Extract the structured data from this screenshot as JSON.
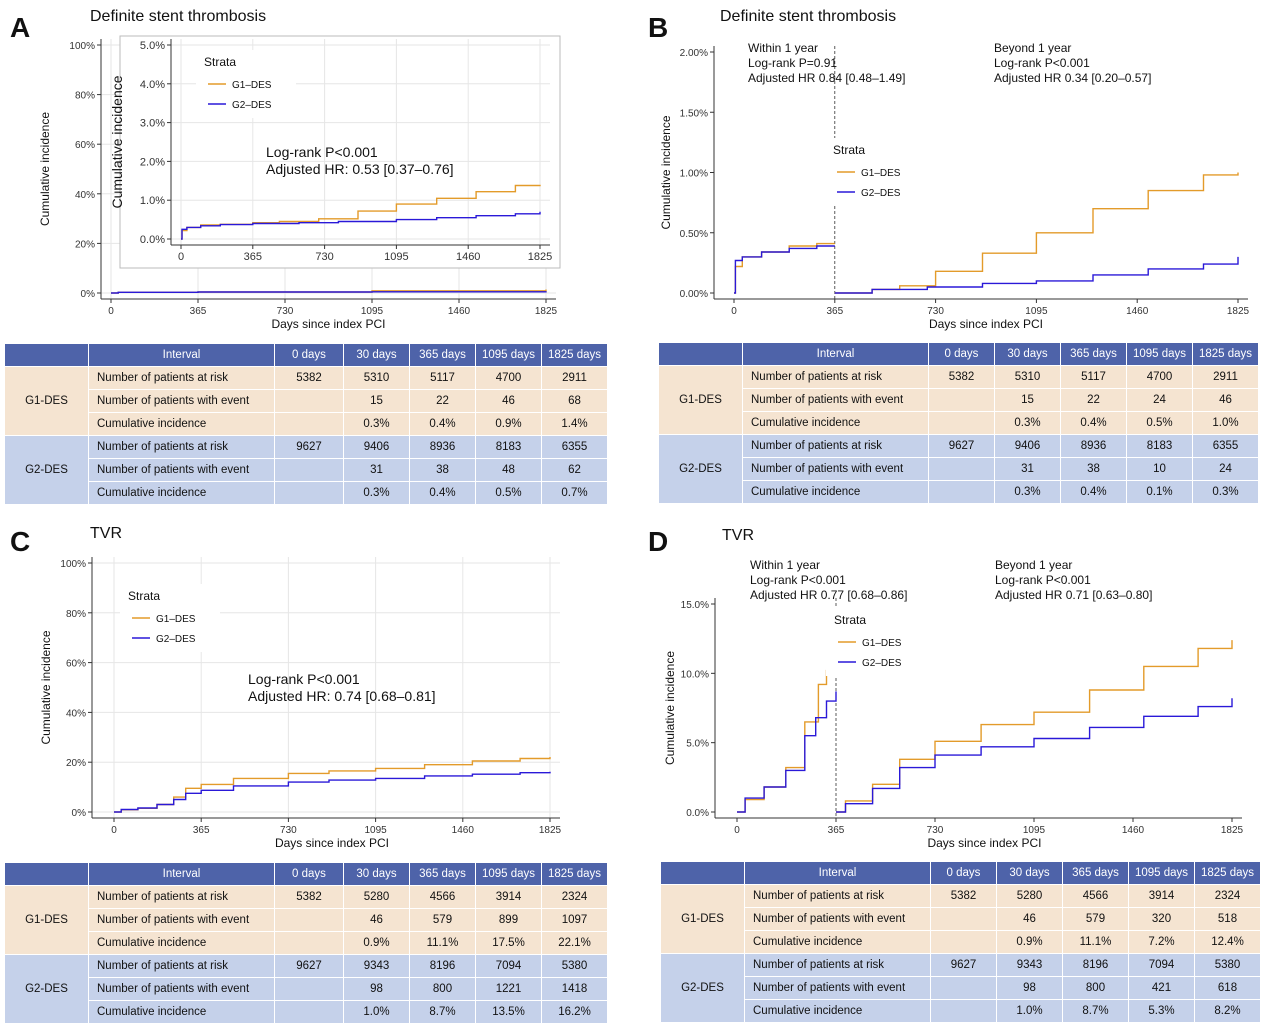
{
  "colors": {
    "g1": "#e39b2a",
    "g2": "#2a19d8",
    "header": "#4e63a9",
    "g1_bg": "#f5e4d1",
    "g2_bg": "#c5d1ea"
  },
  "panels": [
    {
      "label": "A",
      "title": "Definite stent thrombosis",
      "annotation": [
        "Log-rank P<0.001",
        "Adjusted HR: 0.53 [0.37–0.76]"
      ],
      "inset_annotation": true,
      "legend": {
        "title": "Strata",
        "items": [
          "G1–DES",
          "G2–DES"
        ]
      },
      "table": {
        "header": [
          "Interval",
          "0 days",
          "30 days",
          "365 days",
          "1095 days",
          "1825 days"
        ],
        "groups": [
          {
            "name": "G1-DES",
            "rows": [
              {
                "label": "Number of patients at risk",
                "cells": [
                  "5382",
                  "5310",
                  "5117",
                  "4700",
                  "2911"
                ]
              },
              {
                "label": "Number of patients with event",
                "cells": [
                  "",
                  "15",
                  "22",
                  "46",
                  "68"
                ]
              },
              {
                "label": "Cumulative incidence",
                "cells": [
                  "",
                  "0.3%",
                  "0.4%",
                  "0.9%",
                  "1.4%"
                ]
              }
            ]
          },
          {
            "name": "G2-DES",
            "rows": [
              {
                "label": "Number of patients at risk",
                "cells": [
                  "9627",
                  "9406",
                  "8936",
                  "8183",
                  "6355"
                ]
              },
              {
                "label": "Number of patients with event",
                "cells": [
                  "",
                  "31",
                  "38",
                  "48",
                  "62"
                ]
              },
              {
                "label": "Cumulative incidence",
                "cells": [
                  "",
                  "0.3%",
                  "0.4%",
                  "0.5%",
                  "0.7%"
                ]
              }
            ]
          }
        ]
      }
    },
    {
      "label": "B",
      "title": "Definite stent thrombosis",
      "landmark_text": {
        "within": [
          "Within 1 year",
          "Log-rank P=0.91",
          "Adjusted HR 0.84 [0.48–1.49]"
        ],
        "beyond": [
          "Beyond 1 year",
          "Log-rank P<0.001",
          "Adjusted HR 0.34 [0.20–0.57]"
        ]
      },
      "legend": {
        "title": "Strata",
        "items": [
          "G1–DES",
          "G2–DES"
        ]
      },
      "table": {
        "header": [
          "Interval",
          "0 days",
          "30 days",
          "365 days",
          "1095 days",
          "1825 days"
        ],
        "groups": [
          {
            "name": "G1-DES",
            "rows": [
              {
                "label": "Number of patients at risk",
                "cells": [
                  "5382",
                  "5310",
                  "5117",
                  "4700",
                  "2911"
                ]
              },
              {
                "label": "Number of patients with event",
                "cells": [
                  "",
                  "15",
                  "22",
                  "24",
                  "46"
                ]
              },
              {
                "label": "Cumulative incidence",
                "cells": [
                  "",
                  "0.3%",
                  "0.4%",
                  "0.5%",
                  "1.0%"
                ]
              }
            ]
          },
          {
            "name": "G2-DES",
            "rows": [
              {
                "label": "Number of patients at risk",
                "cells": [
                  "9627",
                  "9406",
                  "8936",
                  "8183",
                  "6355"
                ]
              },
              {
                "label": "Number of patients with event",
                "cells": [
                  "",
                  "31",
                  "38",
                  "10",
                  "24"
                ]
              },
              {
                "label": "Cumulative incidence",
                "cells": [
                  "",
                  "0.3%",
                  "0.4%",
                  "0.1%",
                  "0.3%"
                ]
              }
            ]
          }
        ]
      }
    },
    {
      "label": "C",
      "title": "TVR",
      "annotation": [
        "Log-rank P<0.001",
        "Adjusted HR: 0.74 [0.68–0.81]"
      ],
      "legend": {
        "title": "Strata",
        "items": [
          "G1–DES",
          "G2–DES"
        ]
      },
      "table": {
        "header": [
          "Interval",
          "0 days",
          "30 days",
          "365 days",
          "1095 days",
          "1825 days"
        ],
        "groups": [
          {
            "name": "G1-DES",
            "rows": [
              {
                "label": "Number of patients at risk",
                "cells": [
                  "5382",
                  "5280",
                  "4566",
                  "3914",
                  "2324"
                ]
              },
              {
                "label": "Number of patients with event",
                "cells": [
                  "",
                  "46",
                  "579",
                  "899",
                  "1097"
                ]
              },
              {
                "label": "Cumulative incidence",
                "cells": [
                  "",
                  "0.9%",
                  "11.1%",
                  "17.5%",
                  "22.1%"
                ]
              }
            ]
          },
          {
            "name": "G2-DES",
            "rows": [
              {
                "label": "Number of patients at risk",
                "cells": [
                  "9627",
                  "9343",
                  "8196",
                  "7094",
                  "5380"
                ]
              },
              {
                "label": "Number of patients with event",
                "cells": [
                  "",
                  "98",
                  "800",
                  "1221",
                  "1418"
                ]
              },
              {
                "label": "Cumulative incidence",
                "cells": [
                  "",
                  "1.0%",
                  "8.7%",
                  "13.5%",
                  "16.2%"
                ]
              }
            ]
          }
        ]
      }
    },
    {
      "label": "D",
      "title": "TVR",
      "landmark_text": {
        "within": [
          "Within 1 year",
          "Log-rank P<0.001",
          "Adjusted HR 0.77 [0.68–0.86]"
        ],
        "beyond": [
          "Beyond 1 year",
          "Log-rank P<0.001",
          "Adjusted HR 0.71 [0.63–0.80]"
        ]
      },
      "legend": {
        "title": "Strata",
        "items": [
          "G1–DES",
          "G2–DES"
        ]
      },
      "table": {
        "header": [
          "Interval",
          "0 days",
          "30 days",
          "365 days",
          "1095 days",
          "1825 days"
        ],
        "groups": [
          {
            "name": "G1-DES",
            "rows": [
              {
                "label": "Number of patients at risk",
                "cells": [
                  "5382",
                  "5280",
                  "4566",
                  "3914",
                  "2324"
                ]
              },
              {
                "label": "Number of patients with event",
                "cells": [
                  "",
                  "46",
                  "579",
                  "320",
                  "518"
                ]
              },
              {
                "label": "Cumulative incidence",
                "cells": [
                  "",
                  "0.9%",
                  "11.1%",
                  "7.2%",
                  "12.4%"
                ]
              }
            ]
          },
          {
            "name": "G2-DES",
            "rows": [
              {
                "label": "Number of patients at risk",
                "cells": [
                  "9627",
                  "9343",
                  "8196",
                  "7094",
                  "5380"
                ]
              },
              {
                "label": "Number of patients with event",
                "cells": [
                  "",
                  "98",
                  "800",
                  "421",
                  "618"
                ]
              },
              {
                "label": "Cumulative incidence",
                "cells": [
                  "",
                  "1.0%",
                  "8.7%",
                  "5.3%",
                  "8.2%"
                ]
              }
            ]
          }
        ]
      }
    }
  ],
  "chart_data": [
    {
      "type": "line",
      "panel": "A",
      "subtype": "kaplan-meier cumulative incidence (main)",
      "xlabel": "Days since index PCI",
      "ylabel": "Cumulative incidence",
      "xlim": [
        0,
        1825
      ],
      "ylim": [
        0,
        100
      ],
      "y_unit": "%",
      "grid": true,
      "xticks": [
        0,
        365,
        730,
        1095,
        1460,
        1825
      ],
      "yticks": [
        0,
        20,
        40,
        60,
        80,
        100
      ],
      "ytick_labels": [
        "0%",
        "20%",
        "40%",
        "60%",
        "80%",
        "100%"
      ],
      "series": [
        {
          "name": "G1–DES",
          "x": [
            0,
            30,
            365,
            1095,
            1825
          ],
          "y": [
            0,
            0.3,
            0.4,
            0.9,
            1.4
          ]
        },
        {
          "name": "G2–DES",
          "x": [
            0,
            30,
            365,
            1095,
            1825
          ],
          "y": [
            0,
            0.3,
            0.4,
            0.5,
            0.7
          ]
        }
      ]
    },
    {
      "type": "line",
      "panel": "A",
      "subtype": "inset zoom",
      "ylabel": "Cumulative incidence",
      "xlim": [
        0,
        1825
      ],
      "ylim": [
        0,
        5
      ],
      "y_unit": "%",
      "grid": true,
      "xticks": [
        0,
        365,
        730,
        1095,
        1460,
        1825
      ],
      "yticks": [
        0,
        1,
        2,
        3,
        4,
        5
      ],
      "ytick_labels": [
        "0.0%",
        "1.0%",
        "2.0%",
        "3.0%",
        "4.0%",
        "5.0%"
      ],
      "legend_position": "top-left",
      "series": [
        {
          "name": "G1–DES",
          "x": [
            0,
            5,
            30,
            100,
            200,
            365,
            500,
            700,
            900,
            1095,
            1300,
            1500,
            1700,
            1825
          ],
          "y": [
            0,
            0.22,
            0.3,
            0.36,
            0.38,
            0.42,
            0.45,
            0.52,
            0.72,
            0.9,
            1.05,
            1.22,
            1.38,
            1.4
          ]
        },
        {
          "name": "G2–DES",
          "x": [
            0,
            5,
            30,
            100,
            200,
            365,
            600,
            800,
            1095,
            1300,
            1500,
            1700,
            1825
          ],
          "y": [
            0,
            0.25,
            0.3,
            0.34,
            0.37,
            0.4,
            0.42,
            0.45,
            0.5,
            0.55,
            0.6,
            0.65,
            0.7
          ]
        }
      ]
    },
    {
      "type": "line",
      "panel": "B",
      "subtype": "landmark analysis",
      "xlabel": "Days since index PCI",
      "ylabel": "Cumulative incidence",
      "xlim": [
        0,
        1825
      ],
      "ylim": [
        0,
        2
      ],
      "y_unit": "%",
      "grid": false,
      "landmark_day": 365,
      "xticks": [
        0,
        365,
        730,
        1095,
        1460,
        1825
      ],
      "yticks": [
        0,
        0.5,
        1.0,
        1.5,
        2.0
      ],
      "ytick_labels": [
        "0.00%",
        "0.50%",
        "1.00%",
        "1.50%",
        "2.00%"
      ],
      "legend_position": "center",
      "series": [
        {
          "name": "G1–DES",
          "segments": [
            {
              "x": [
                0,
                5,
                30,
                100,
                200,
                300,
                365
              ],
              "y": [
                0,
                0.22,
                0.3,
                0.34,
                0.39,
                0.41,
                0.41
              ]
            },
            {
              "x": [
                365,
                500,
                600,
                730,
                900,
                1095,
                1300,
                1500,
                1700,
                1825
              ],
              "y": [
                0,
                0.03,
                0.06,
                0.18,
                0.33,
                0.5,
                0.7,
                0.85,
                0.98,
                1.0
              ]
            }
          ]
        },
        {
          "name": "G2–DES",
          "segments": [
            {
              "x": [
                0,
                5,
                30,
                100,
                200,
                300,
                365
              ],
              "y": [
                0,
                0.27,
                0.3,
                0.34,
                0.37,
                0.39,
                0.39
              ]
            },
            {
              "x": [
                365,
                500,
                700,
                900,
                1095,
                1300,
                1500,
                1700,
                1825
              ],
              "y": [
                0,
                0.03,
                0.05,
                0.08,
                0.1,
                0.15,
                0.2,
                0.24,
                0.3
              ]
            }
          ]
        }
      ]
    },
    {
      "type": "line",
      "panel": "C",
      "subtype": "kaplan-meier cumulative incidence",
      "xlabel": "Days since index PCI",
      "ylabel": "Cumulative incidence",
      "xlim": [
        0,
        1825
      ],
      "ylim": [
        0,
        100
      ],
      "y_unit": "%",
      "grid": true,
      "xticks": [
        0,
        365,
        730,
        1095,
        1460,
        1825
      ],
      "yticks": [
        0,
        20,
        40,
        60,
        80,
        100
      ],
      "ytick_labels": [
        "0%",
        "20%",
        "40%",
        "60%",
        "80%",
        "100%"
      ],
      "legend_position": "top-left",
      "series": [
        {
          "name": "G1–DES",
          "x": [
            0,
            30,
            100,
            180,
            250,
            300,
            365,
            500,
            730,
            900,
            1095,
            1300,
            1500,
            1700,
            1825
          ],
          "y": [
            0,
            0.9,
            1.5,
            3,
            6,
            9.5,
            11.1,
            13.5,
            15.5,
            16.5,
            17.5,
            19,
            20.5,
            21.5,
            22.1
          ]
        },
        {
          "name": "G2–DES",
          "x": [
            0,
            30,
            100,
            180,
            250,
            300,
            365,
            500,
            730,
            900,
            1095,
            1300,
            1500,
            1700,
            1825
          ],
          "y": [
            0,
            1.0,
            1.6,
            3,
            5,
            7.5,
            8.7,
            10.5,
            12,
            12.8,
            13.5,
            14.5,
            15.2,
            15.8,
            16.2
          ]
        }
      ]
    },
    {
      "type": "line",
      "panel": "D",
      "subtype": "landmark analysis",
      "xlabel": "Days since index PCI",
      "ylabel": "Cumulative incidence",
      "xlim": [
        0,
        1825
      ],
      "ylim": [
        0,
        15
      ],
      "y_unit": "%",
      "grid": false,
      "landmark_day": 365,
      "xticks": [
        0,
        365,
        730,
        1095,
        1460,
        1825
      ],
      "yticks": [
        0,
        5,
        10,
        15
      ],
      "ytick_labels": [
        "0.0%",
        "5.0%",
        "10.0%",
        "15.0%"
      ],
      "legend_position": "top-center",
      "series": [
        {
          "name": "G1–DES",
          "segments": [
            {
              "x": [
                0,
                30,
                100,
                180,
                250,
                300,
                330,
                365
              ],
              "y": [
                0,
                0.9,
                1.8,
                3.2,
                6.5,
                9.2,
                10.2,
                11.1
              ]
            },
            {
              "x": [
                365,
                400,
                500,
                600,
                730,
                900,
                1095,
                1300,
                1500,
                1700,
                1825
              ],
              "y": [
                0,
                0.8,
                2,
                3.8,
                5.1,
                6.3,
                7.2,
                8.8,
                10.5,
                11.8,
                12.4
              ]
            }
          ]
        },
        {
          "name": "G2–DES",
          "segments": [
            {
              "x": [
                0,
                30,
                100,
                180,
                250,
                290,
                330,
                365
              ],
              "y": [
                0,
                1.0,
                1.8,
                3.0,
                5.5,
                6.8,
                8.0,
                8.7
              ]
            },
            {
              "x": [
                365,
                400,
                500,
                600,
                730,
                900,
                1095,
                1300,
                1500,
                1700,
                1825
              ],
              "y": [
                0,
                0.6,
                1.7,
                3.2,
                4.1,
                4.7,
                5.3,
                6.1,
                6.9,
                7.6,
                8.2
              ]
            }
          ]
        }
      ]
    }
  ]
}
